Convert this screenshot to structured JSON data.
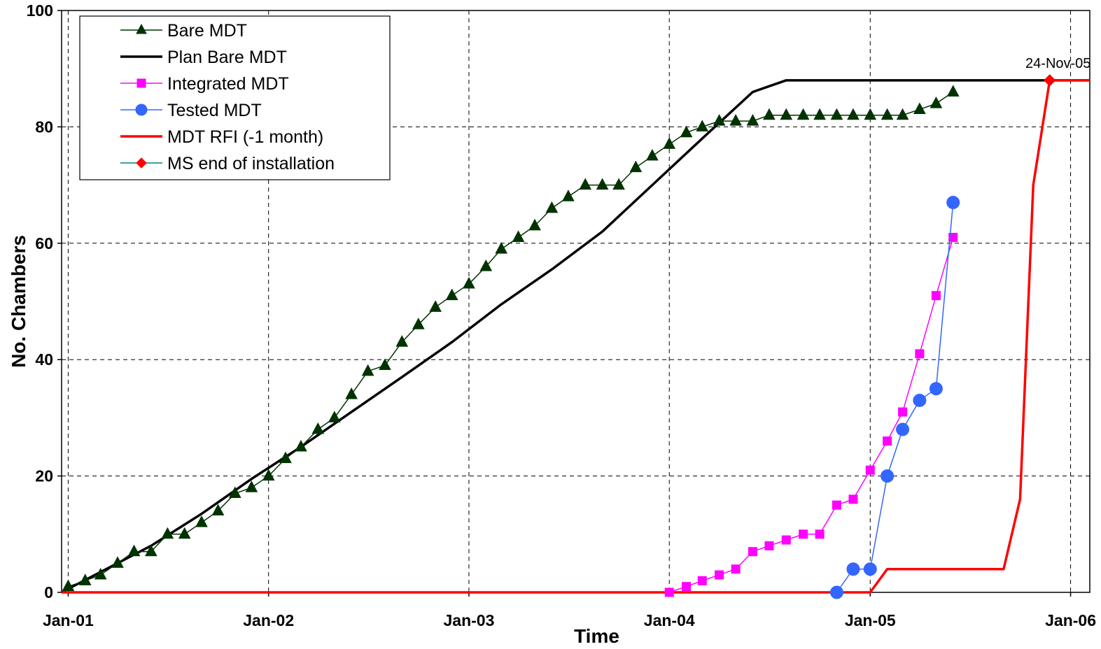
{
  "chart_data": {
    "type": "line",
    "xlabel": "Time",
    "ylabel": "No. Chambers",
    "ylim": [
      0,
      100
    ],
    "xlim": [
      "2000-12-20",
      "2006-02-05"
    ],
    "y_ticks": [
      "0",
      "20",
      "40",
      "60",
      "80",
      "100"
    ],
    "y_tick_values": [
      0,
      20,
      40,
      60,
      80,
      100
    ],
    "x_ticks": [
      "Jan-01",
      "Jan-02",
      "Jan-03",
      "Jan-04",
      "Jan-05",
      "Jan-06"
    ],
    "x_tick_dates": [
      "2001-01-01",
      "2002-01-01",
      "2003-01-01",
      "2004-01-01",
      "2005-01-01",
      "2006-01-01"
    ],
    "grid": true,
    "legend_position": "top-left",
    "annotation": {
      "text": "24-Nov-05",
      "date": "2005-11-24",
      "y": 88
    },
    "series": [
      {
        "name": "Bare MDT",
        "color": "#003300",
        "marker": "triangle",
        "x": [
          "2001-01-01",
          "2001-02-01",
          "2001-03-01",
          "2001-04-01",
          "2001-05-01",
          "2001-06-01",
          "2001-07-01",
          "2001-08-01",
          "2001-09-01",
          "2001-10-01",
          "2001-11-01",
          "2001-12-01",
          "2002-01-01",
          "2002-02-01",
          "2002-03-01",
          "2002-04-01",
          "2002-05-01",
          "2002-06-01",
          "2002-07-01",
          "2002-08-01",
          "2002-09-01",
          "2002-10-01",
          "2002-11-01",
          "2002-12-01",
          "2003-01-01",
          "2003-02-01",
          "2003-03-01",
          "2003-04-01",
          "2003-05-01",
          "2003-06-01",
          "2003-07-01",
          "2003-08-01",
          "2003-09-01",
          "2003-10-01",
          "2003-11-01",
          "2003-12-01",
          "2004-01-01",
          "2004-02-01",
          "2004-03-01",
          "2004-04-01",
          "2004-05-01",
          "2004-06-01",
          "2004-07-01",
          "2004-08-01",
          "2004-09-01",
          "2004-10-01",
          "2004-11-01",
          "2004-12-01",
          "2005-01-01",
          "2005-02-01",
          "2005-03-01",
          "2005-04-01",
          "2005-05-01",
          "2005-06-01"
        ],
        "values": [
          1,
          2,
          3,
          5,
          7,
          7,
          10,
          10,
          12,
          14,
          17,
          18,
          20,
          23,
          25,
          28,
          30,
          34,
          38,
          39,
          43,
          46,
          49,
          51,
          53,
          56,
          59,
          61,
          63,
          66,
          68,
          70,
          70,
          70,
          73,
          75,
          77,
          79,
          80,
          81,
          81,
          81,
          82,
          82,
          82,
          82,
          82,
          82,
          82,
          82,
          82,
          83,
          84,
          86
        ]
      },
      {
        "name": "Plan Bare MDT",
        "color": "#000000",
        "marker": "none",
        "x": [
          "2000-12-20",
          "2001-03-01",
          "2001-06-01",
          "2001-09-01",
          "2001-12-01",
          "2002-03-01",
          "2002-06-01",
          "2002-09-01",
          "2002-12-01",
          "2003-03-01",
          "2003-06-01",
          "2003-09-01",
          "2003-12-01",
          "2004-03-01",
          "2004-06-01",
          "2004-08-01",
          "2005-11-24",
          "2006-02-05"
        ],
        "values": [
          0,
          3.5,
          8,
          13.5,
          19.5,
          25,
          31,
          37,
          43,
          49.5,
          55.5,
          62,
          70,
          78,
          86,
          88,
          88,
          88
        ]
      },
      {
        "name": "Integrated MDT",
        "color": "#ff00ff",
        "marker": "square",
        "x": [
          "2004-01-01",
          "2004-02-01",
          "2004-03-01",
          "2004-04-01",
          "2004-05-01",
          "2004-06-01",
          "2004-07-01",
          "2004-08-01",
          "2004-09-01",
          "2004-10-01",
          "2004-11-01",
          "2004-12-01",
          "2005-01-01",
          "2005-02-01",
          "2005-03-01",
          "2005-04-01",
          "2005-05-01",
          "2005-06-01"
        ],
        "values": [
          0,
          1,
          2,
          3,
          4,
          7,
          8,
          9,
          10,
          10,
          15,
          16,
          21,
          26,
          31,
          41,
          51,
          61
        ]
      },
      {
        "name": "Tested MDT",
        "color": "#3366ff",
        "marker": "circle",
        "x": [
          "2004-11-01",
          "2004-12-01",
          "2005-01-01",
          "2005-02-01",
          "2005-03-01",
          "2005-04-01",
          "2005-05-01",
          "2005-06-01"
        ],
        "values": [
          0,
          4,
          4,
          20,
          28,
          33,
          35,
          67
        ]
      },
      {
        "name": "MDT RFI (-1 month)",
        "color": "#ff0000",
        "marker": "none",
        "x": [
          "2000-12-20",
          "2005-01-01",
          "2005-02-01",
          "2005-09-01",
          "2005-10-01",
          "2005-10-25",
          "2005-11-24",
          "2006-02-05"
        ],
        "values": [
          0,
          0,
          4,
          4,
          16,
          70,
          88,
          88
        ]
      },
      {
        "name": "MS end of installation",
        "color": "#ff0000",
        "line_color": "#008080",
        "marker": "diamond",
        "x": [
          "2005-11-24"
        ],
        "values": [
          88
        ]
      }
    ]
  }
}
